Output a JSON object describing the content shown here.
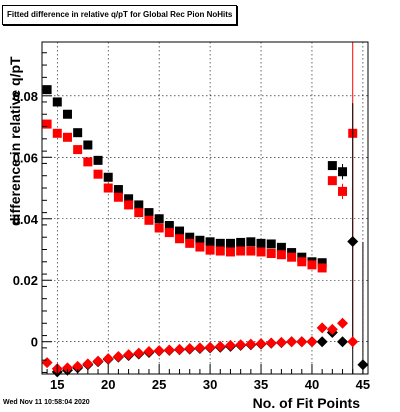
{
  "chart_data": {
    "type": "scatter",
    "title": "Fitted difference in relative q/pT for Global Rec Pion NoHits",
    "xlabel": "No. of Fit Points",
    "ylabel": "difference in relative q/pT",
    "xlim": [
      13.5,
      45.5
    ],
    "ylim": [
      -0.0105,
      0.0975
    ],
    "x_ticks": [
      "15",
      "20",
      "25",
      "30",
      "35",
      "40",
      "45"
    ],
    "y_ticks": [
      "0",
      "0.02",
      "0.04",
      "0.06",
      "0.08"
    ],
    "grid": true,
    "series": [
      {
        "marker": "square",
        "color": "#000000",
        "x": [
          14,
          15,
          16,
          17,
          18,
          19,
          20,
          21,
          22,
          23,
          24,
          25,
          26,
          27,
          28,
          29,
          30,
          31,
          32,
          33,
          34,
          35,
          36,
          37,
          38,
          39,
          40,
          41,
          42,
          43
        ],
        "y": [
          0.082,
          0.078,
          0.074,
          0.068,
          0.064,
          0.059,
          0.0535,
          0.0495,
          0.0465,
          0.0445,
          0.042,
          0.04,
          0.0378,
          0.036,
          0.034,
          0.033,
          0.0325,
          0.032,
          0.032,
          0.0323,
          0.0325,
          0.032,
          0.0318,
          0.0307,
          0.029,
          0.0275,
          0.026,
          0.0257,
          0.0573,
          0.0553
        ],
        "yerr": [
          0,
          0,
          0,
          0,
          0,
          0,
          0,
          0,
          0,
          0,
          0,
          0,
          0,
          0,
          0,
          0,
          0,
          0,
          0,
          0,
          0,
          0,
          0,
          0,
          0,
          0,
          0,
          0,
          0,
          0.0025
        ]
      },
      {
        "marker": "square",
        "color": "#ff0000",
        "x": [
          14,
          15,
          16,
          17,
          18,
          19,
          20,
          21,
          22,
          23,
          24,
          25,
          26,
          27,
          28,
          29,
          30,
          31,
          32,
          33,
          34,
          35,
          36,
          37,
          38,
          39,
          40,
          41,
          42,
          43,
          44
        ],
        "y": [
          0.0708,
          0.0678,
          0.0665,
          0.0625,
          0.0585,
          0.0545,
          0.05,
          0.047,
          0.0445,
          0.042,
          0.0395,
          0.037,
          0.0355,
          0.0335,
          0.032,
          0.0308,
          0.0298,
          0.0295,
          0.0292,
          0.0295,
          0.0295,
          0.0292,
          0.0287,
          0.0283,
          0.0275,
          0.026,
          0.025,
          0.024,
          0.0524,
          0.0489,
          0.0678
        ],
        "yerr": [
          0,
          0,
          0,
          0,
          0,
          0,
          0,
          0,
          0,
          0,
          0,
          0,
          0,
          0,
          0,
          0,
          0,
          0,
          0,
          0,
          0,
          0,
          0,
          0,
          0,
          0,
          0,
          0,
          0,
          0.0025,
          0.07
        ]
      },
      {
        "marker": "diamond",
        "color": "#000000",
        "x": [
          15,
          16,
          17,
          18,
          19,
          20,
          21,
          22,
          23,
          24,
          25,
          26,
          27,
          28,
          29,
          30,
          31,
          32,
          33,
          34,
          35,
          36,
          37,
          38,
          39,
          40,
          41,
          42,
          43,
          44,
          45
        ],
        "y": [
          -0.0098,
          -0.0093,
          -0.0085,
          -0.0075,
          -0.0065,
          -0.0057,
          -0.005,
          -0.0045,
          -0.004,
          -0.0035,
          -0.003,
          -0.0028,
          -0.0026,
          -0.0024,
          -0.0022,
          -0.002,
          -0.0018,
          -0.0015,
          -0.0012,
          -0.001,
          -0.0008,
          -0.0005,
          -0.0003,
          0.0,
          0.0,
          0.0,
          0.0,
          0.003,
          0.0,
          0.0326,
          -0.0075
        ],
        "yerr": [
          0,
          0,
          0,
          0,
          0,
          0,
          0,
          0,
          0,
          0,
          0,
          0,
          0,
          0,
          0,
          0,
          0,
          0,
          0,
          0,
          0,
          0,
          0,
          0,
          0,
          0,
          0,
          0,
          0,
          0.045,
          0.04
        ]
      },
      {
        "marker": "diamond",
        "color": "#ff0000",
        "x": [
          14,
          15,
          16,
          17,
          18,
          19,
          20,
          21,
          22,
          23,
          24,
          25,
          26,
          27,
          28,
          29,
          30,
          31,
          32,
          33,
          34,
          35,
          36,
          37,
          38,
          39,
          40,
          41,
          42,
          43,
          44
        ],
        "y": [
          -0.0068,
          -0.0088,
          -0.0085,
          -0.008,
          -0.0072,
          -0.0063,
          -0.0055,
          -0.0048,
          -0.0042,
          -0.0037,
          -0.0032,
          -0.0029,
          -0.0027,
          -0.0025,
          -0.0022,
          -0.002,
          -0.0018,
          -0.0015,
          -0.0012,
          -0.001,
          -0.0008,
          -0.0006,
          -0.0004,
          -0.0002,
          0.0,
          0.0,
          0.0,
          0.0045,
          0.004,
          0.006,
          0.0
        ],
        "yerr": [
          0,
          0,
          0,
          0,
          0,
          0,
          0,
          0,
          0,
          0,
          0,
          0,
          0,
          0,
          0,
          0,
          0,
          0,
          0,
          0,
          0,
          0,
          0,
          0,
          0,
          0,
          0,
          0,
          0,
          0,
          0
        ]
      }
    ]
  },
  "footer": {
    "date": "Wed Nov 11 10:58:04 2020"
  }
}
